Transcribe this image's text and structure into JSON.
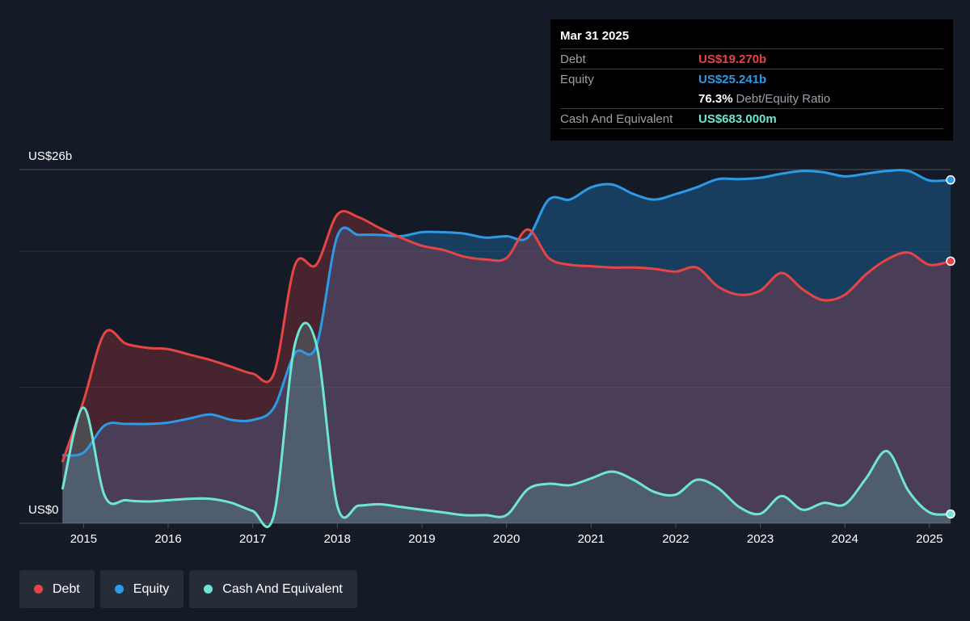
{
  "tooltip": {
    "date": "Mar 31 2025",
    "debt_label": "Debt",
    "debt_value": "US$19.270b",
    "equity_label": "Equity",
    "equity_value": "US$25.241b",
    "ratio_value": "76.3%",
    "ratio_label": "Debt/Equity Ratio",
    "cash_label": "Cash And Equivalent",
    "cash_value": "US$683.000m"
  },
  "legend": [
    {
      "label": "Debt",
      "color": "#e64545"
    },
    {
      "label": "Equity",
      "color": "#2d9ae6"
    },
    {
      "label": "Cash And Equivalent",
      "color": "#6fe6d4"
    }
  ],
  "colors": {
    "debt": "#e64545",
    "equity": "#2d9ae6",
    "cash": "#6fe6d4",
    "background": "#151b26"
  },
  "chart_data": {
    "type": "area",
    "ylim": [
      0,
      26
    ],
    "xlim": [
      2014.7,
      2025.25
    ],
    "y_tick_labels": [
      {
        "value": 26,
        "label": "US$26b"
      },
      {
        "value": 0,
        "label": "US$0"
      }
    ],
    "x_ticks": [
      2015,
      2016,
      2017,
      2018,
      2019,
      2020,
      2021,
      2022,
      2023,
      2024,
      2025
    ],
    "x_tick_labels": [
      "2015",
      "2016",
      "2017",
      "2018",
      "2019",
      "2020",
      "2021",
      "2022",
      "2023",
      "2024",
      "2025"
    ],
    "grid": true,
    "legend_position": "bottom-left",
    "series": [
      {
        "name": "Debt",
        "x": [
          2014.75,
          2015.0,
          2015.25,
          2015.5,
          2015.75,
          2016.0,
          2016.25,
          2016.5,
          2016.75,
          2017.0,
          2017.25,
          2017.5,
          2017.75,
          2018.0,
          2018.25,
          2018.5,
          2018.75,
          2019.0,
          2019.25,
          2019.5,
          2019.75,
          2020.0,
          2020.25,
          2020.5,
          2020.75,
          2021.0,
          2021.25,
          2021.5,
          2021.75,
          2022.0,
          2022.25,
          2022.5,
          2022.75,
          2023.0,
          2023.25,
          2023.5,
          2023.75,
          2024.0,
          2024.25,
          2024.5,
          2024.75,
          2025.0,
          2025.25
        ],
        "values": [
          4.5,
          9.0,
          14.0,
          13.2,
          12.9,
          12.8,
          12.4,
          12.0,
          11.5,
          11.0,
          11.0,
          19.0,
          19.0,
          22.7,
          22.5,
          21.7,
          21.0,
          20.4,
          20.1,
          19.6,
          19.4,
          19.5,
          21.6,
          19.5,
          19.0,
          18.9,
          18.8,
          18.8,
          18.7,
          18.5,
          18.8,
          17.4,
          16.8,
          17.1,
          18.4,
          17.2,
          16.4,
          16.8,
          18.3,
          19.4,
          19.9,
          19.0,
          19.27
        ]
      },
      {
        "name": "Equity",
        "x": [
          2014.75,
          2015.0,
          2015.25,
          2015.5,
          2015.75,
          2016.0,
          2016.25,
          2016.5,
          2016.75,
          2017.0,
          2017.25,
          2017.5,
          2017.75,
          2018.0,
          2018.25,
          2018.5,
          2018.75,
          2019.0,
          2019.25,
          2019.5,
          2019.75,
          2020.0,
          2020.25,
          2020.5,
          2020.75,
          2021.0,
          2021.25,
          2021.5,
          2021.75,
          2022.0,
          2022.25,
          2022.5,
          2022.75,
          2023.0,
          2023.25,
          2023.5,
          2023.75,
          2024.0,
          2024.25,
          2024.5,
          2024.75,
          2025.0,
          2025.25
        ],
        "values": [
          5.0,
          5.2,
          7.2,
          7.3,
          7.3,
          7.4,
          7.7,
          8.0,
          7.6,
          7.6,
          8.5,
          12.5,
          13.0,
          21.1,
          21.2,
          21.2,
          21.1,
          21.4,
          21.4,
          21.3,
          21.0,
          21.1,
          21.0,
          23.8,
          23.8,
          24.7,
          24.9,
          24.2,
          23.8,
          24.2,
          24.7,
          25.3,
          25.3,
          25.4,
          25.7,
          25.9,
          25.8,
          25.5,
          25.7,
          25.9,
          25.9,
          25.2,
          25.241
        ]
      },
      {
        "name": "Cash And Equivalent",
        "x": [
          2014.75,
          2015.0,
          2015.25,
          2015.5,
          2015.75,
          2016.0,
          2016.25,
          2016.5,
          2016.75,
          2017.0,
          2017.25,
          2017.5,
          2017.75,
          2018.0,
          2018.25,
          2018.5,
          2018.75,
          2019.0,
          2019.25,
          2019.5,
          2019.75,
          2020.0,
          2020.25,
          2020.5,
          2020.75,
          2021.0,
          2021.25,
          2021.5,
          2021.75,
          2022.0,
          2022.25,
          2022.5,
          2022.75,
          2023.0,
          2023.25,
          2023.5,
          2023.75,
          2024.0,
          2024.25,
          2024.5,
          2024.75,
          2025.0,
          2025.25
        ],
        "values": [
          2.5,
          8.5,
          2.0,
          1.7,
          1.6,
          1.7,
          1.8,
          1.8,
          1.5,
          0.9,
          0.6,
          13.2,
          13.2,
          1.3,
          1.3,
          1.4,
          1.2,
          1.0,
          0.8,
          0.6,
          0.6,
          0.6,
          2.5,
          2.9,
          2.8,
          3.3,
          3.8,
          3.2,
          2.3,
          2.1,
          3.2,
          2.6,
          1.2,
          0.7,
          2.0,
          1.0,
          1.5,
          1.4,
          3.3,
          5.3,
          2.4,
          0.8,
          0.683
        ]
      }
    ]
  }
}
